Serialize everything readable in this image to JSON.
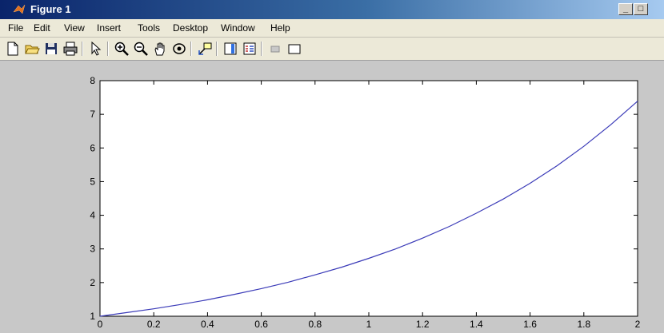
{
  "window": {
    "title": "Figure 1"
  },
  "menu": {
    "items": [
      {
        "label": "File"
      },
      {
        "label": "Edit"
      },
      {
        "label": "View"
      },
      {
        "label": "Insert"
      },
      {
        "label": "Tools"
      },
      {
        "label": "Desktop"
      },
      {
        "label": "Window"
      },
      {
        "label": "Help"
      }
    ]
  },
  "toolbar": {
    "icons": [
      "new-figure-icon",
      "open-file-icon",
      "save-icon",
      "print-icon",
      "edit-plot-arrow-icon",
      "zoom-in-icon",
      "zoom-out-icon",
      "pan-hand-icon",
      "rotate-3d-icon",
      "data-cursor-icon",
      "insert-colorbar-icon",
      "insert-legend-icon",
      "hide-plot-tools-icon",
      "show-plot-tools-icon"
    ]
  },
  "chart_data": {
    "type": "line",
    "title": "",
    "xlabel": "",
    "ylabel": "",
    "xlim": [
      0,
      2
    ],
    "ylim": [
      1,
      8
    ],
    "xticks": [
      0,
      0.2,
      0.4,
      0.6,
      0.8,
      1,
      1.2,
      1.4,
      1.6,
      1.8,
      2
    ],
    "xtick_labels": [
      "0",
      "0.2",
      "0.4",
      "0.6",
      "0.8",
      "1",
      "1.2",
      "1.4",
      "1.6",
      "1.8",
      "2"
    ],
    "yticks": [
      1,
      2,
      3,
      4,
      5,
      6,
      7,
      8
    ],
    "ytick_labels": [
      "1",
      "2",
      "3",
      "4",
      "5",
      "6",
      "7",
      "8"
    ],
    "grid": false,
    "line_color": "#3b3bb8",
    "series": [
      {
        "x": [
          0,
          0.1,
          0.2,
          0.3,
          0.4,
          0.5,
          0.6,
          0.7,
          0.8,
          0.9,
          1.0,
          1.1,
          1.2,
          1.3,
          1.4,
          1.5,
          1.6,
          1.7,
          1.8,
          1.9,
          2.0
        ],
        "values": [
          1.0,
          1.11,
          1.22,
          1.35,
          1.49,
          1.65,
          1.82,
          2.01,
          2.23,
          2.46,
          2.72,
          3.0,
          3.32,
          3.67,
          4.06,
          4.48,
          4.95,
          5.47,
          6.05,
          6.69,
          7.39
        ]
      }
    ]
  }
}
